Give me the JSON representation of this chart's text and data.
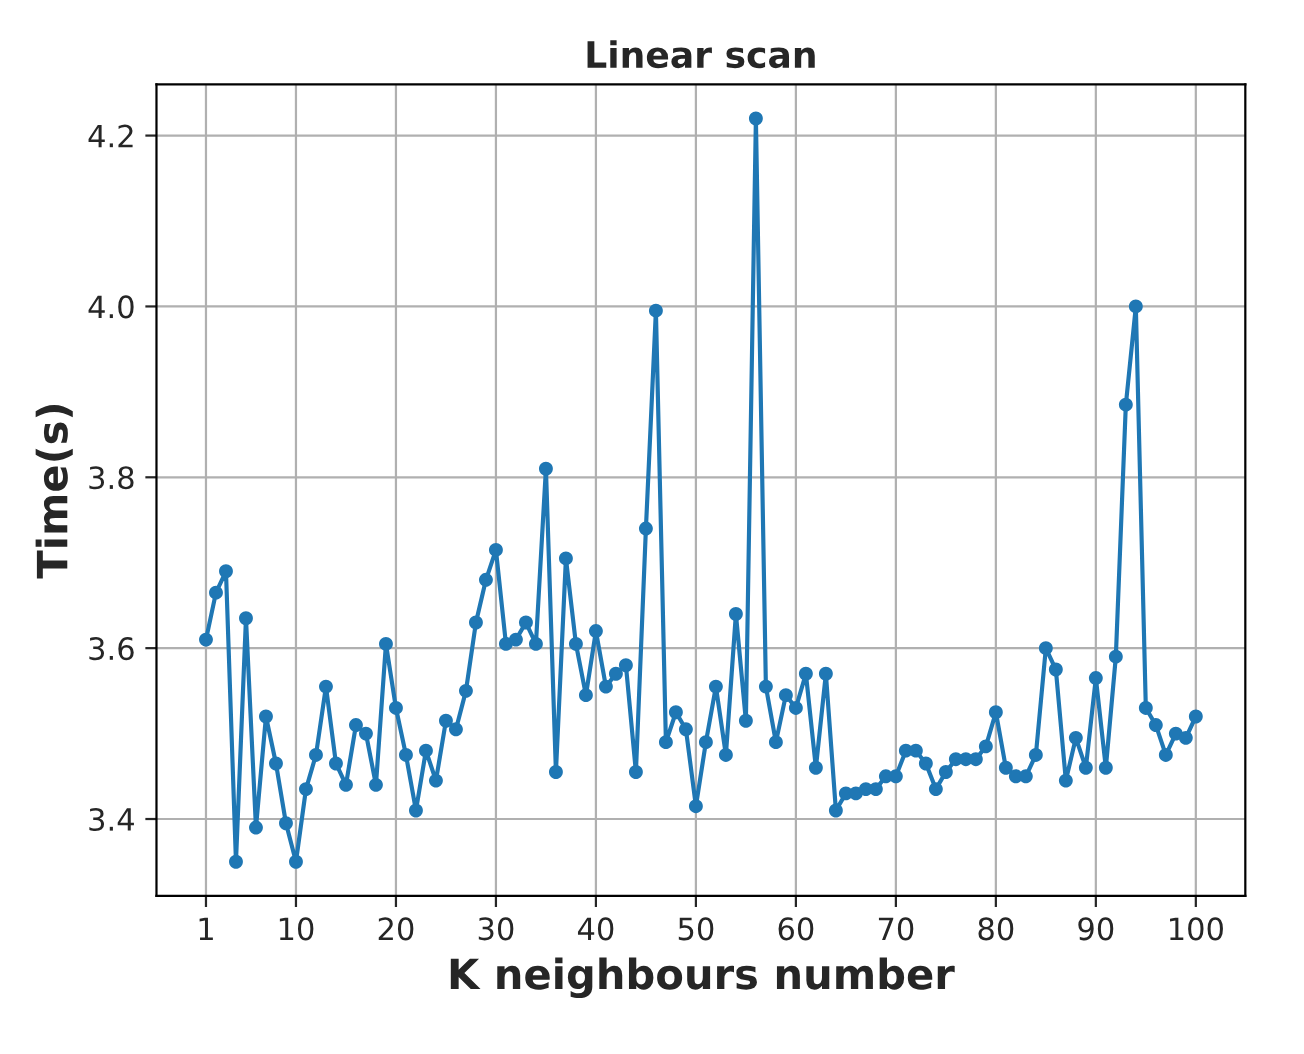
{
  "chart_data": {
    "type": "line",
    "title": "Linear scan",
    "xlabel": "K neighbours number",
    "ylabel": "Time(s)",
    "x": [
      1,
      2,
      3,
      4,
      5,
      6,
      7,
      8,
      9,
      10,
      11,
      12,
      13,
      14,
      15,
      16,
      17,
      18,
      19,
      20,
      21,
      22,
      23,
      24,
      25,
      26,
      27,
      28,
      29,
      30,
      31,
      32,
      33,
      34,
      35,
      36,
      37,
      38,
      39,
      40,
      41,
      42,
      43,
      44,
      45,
      46,
      47,
      48,
      49,
      50,
      51,
      52,
      53,
      54,
      55,
      56,
      57,
      58,
      59,
      60,
      61,
      62,
      63,
      64,
      65,
      66,
      67,
      68,
      69,
      70,
      71,
      72,
      73,
      74,
      75,
      76,
      77,
      78,
      79,
      80,
      81,
      82,
      83,
      84,
      85,
      86,
      87,
      88,
      89,
      90,
      91,
      92,
      93,
      94,
      95,
      96,
      97,
      98,
      99,
      100
    ],
    "series": [
      {
        "color": "#1f77b4",
        "values": [
          3.61,
          3.665,
          3.69,
          3.35,
          3.635,
          3.39,
          3.52,
          3.465,
          3.395,
          3.35,
          3.435,
          3.475,
          3.555,
          3.465,
          3.44,
          3.51,
          3.5,
          3.44,
          3.605,
          3.53,
          3.475,
          3.41,
          3.48,
          3.445,
          3.515,
          3.505,
          3.55,
          3.63,
          3.68,
          3.715,
          3.605,
          3.61,
          3.63,
          3.605,
          3.81,
          3.455,
          3.705,
          3.605,
          3.545,
          3.62,
          3.555,
          3.57,
          3.58,
          3.455,
          3.74,
          3.995,
          3.49,
          3.525,
          3.505,
          3.415,
          3.49,
          3.555,
          3.475,
          3.64,
          3.515,
          4.22,
          3.555,
          3.49,
          3.545,
          3.53,
          3.57,
          3.46,
          3.57,
          3.41,
          3.43,
          3.43,
          3.435,
          3.435,
          3.45,
          3.45,
          3.48,
          3.48,
          3.465,
          3.435,
          3.455,
          3.47,
          3.47,
          3.47,
          3.485,
          3.525,
          3.46,
          3.45,
          3.45,
          3.475,
          3.6,
          3.575,
          3.445,
          3.495,
          3.46,
          3.565,
          3.46,
          3.59,
          3.885,
          4.0,
          3.53,
          3.51,
          3.475,
          3.5,
          3.495,
          3.52
        ]
      }
    ],
    "xlim": [
      -3.95,
      104.95
    ],
    "ylim": [
      3.31,
      4.26
    ],
    "xticks": [
      1,
      10,
      20,
      30,
      40,
      50,
      60,
      70,
      80,
      90,
      100
    ],
    "yticks": [
      3.4,
      3.6,
      3.8,
      {
        "value": 4.0,
        "label": "4.0"
      },
      4.2
    ],
    "grid": true,
    "marker": "circle",
    "line_style": "solid"
  }
}
